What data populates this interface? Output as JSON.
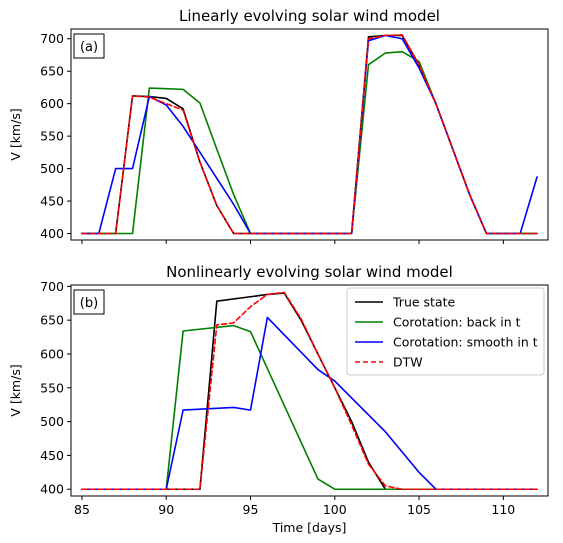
{
  "chart_data": [
    {
      "type": "line",
      "title": "Linearly evolving solar wind model",
      "panel_label": "(a)",
      "xlabel": "",
      "ylabel": "V [km/s]",
      "xlim": [
        84.35,
        112.65
      ],
      "ylim": [
        390,
        715
      ],
      "xticks": [
        85,
        90,
        95,
        100,
        105,
        110
      ],
      "yticks": [
        400,
        450,
        500,
        550,
        600,
        650,
        700
      ],
      "series": [
        {
          "key": "true",
          "color": "#000000",
          "dash": "",
          "x": [
            85,
            86,
            87,
            88,
            89,
            90,
            91,
            92,
            93,
            94,
            95,
            96,
            97,
            98,
            99,
            100,
            101,
            102,
            103,
            104,
            105,
            106,
            107,
            108,
            109,
            110,
            111,
            112
          ],
          "y": [
            400,
            400,
            400,
            612,
            611,
            608,
            592,
            510,
            443,
            400,
            400,
            400,
            400,
            400,
            400,
            400,
            400,
            703,
            705,
            705,
            660,
            600,
            530,
            460,
            400,
            400,
            400,
            400
          ]
        },
        {
          "key": "back",
          "color": "#008000",
          "dash": "",
          "x": [
            85,
            86,
            87,
            88,
            89,
            90,
            91,
            92,
            93,
            94,
            95,
            96,
            97,
            98,
            99,
            100,
            101,
            102,
            103,
            104,
            105,
            106,
            107,
            108,
            109,
            110,
            111,
            112
          ],
          "y": [
            400,
            400,
            400,
            400,
            624,
            623,
            622,
            601,
            530,
            460,
            400,
            400,
            400,
            400,
            400,
            400,
            400,
            660,
            678,
            680,
            665,
            600,
            530,
            460,
            400,
            400,
            400,
            400
          ]
        },
        {
          "key": "smooth",
          "color": "#0000ff",
          "dash": "",
          "x": [
            85,
            86,
            87,
            88,
            89,
            90,
            91,
            92,
            93,
            94,
            95,
            96,
            97,
            98,
            99,
            100,
            101,
            102,
            103,
            104,
            105,
            106,
            107,
            108,
            109,
            110,
            111,
            112
          ],
          "y": [
            400,
            400,
            500,
            500,
            611,
            598,
            565,
            525,
            485,
            445,
            400,
            400,
            400,
            400,
            400,
            400,
            400,
            697,
            705,
            700,
            655,
            600,
            530,
            460,
            400,
            400,
            400,
            487
          ]
        },
        {
          "key": "dtw",
          "color": "#ff0000",
          "dash": "5,3",
          "x": [
            85,
            86,
            87,
            88,
            89,
            90,
            91,
            92,
            93,
            94,
            95,
            96,
            97,
            98,
            99,
            100,
            101,
            102,
            103,
            104,
            105,
            106,
            107,
            108,
            109,
            110,
            111,
            112
          ],
          "y": [
            400,
            400,
            400,
            612,
            610,
            600,
            590,
            510,
            443,
            400,
            400,
            400,
            400,
            400,
            400,
            400,
            400,
            700,
            705,
            706,
            660,
            600,
            530,
            460,
            400,
            400,
            400,
            400
          ]
        }
      ]
    },
    {
      "type": "line",
      "title": "Nonlinearly evolving solar wind model",
      "panel_label": "(b)",
      "xlabel": "Time [days]",
      "ylabel": "V [km/s]",
      "xlim": [
        84.35,
        112.65
      ],
      "ylim": [
        390,
        702
      ],
      "xticks": [
        85,
        90,
        95,
        100,
        105,
        110
      ],
      "yticks": [
        400,
        450,
        500,
        550,
        600,
        650,
        700
      ],
      "legend_position": "top-right",
      "legend": [
        {
          "key": "true",
          "label": "True state"
        },
        {
          "key": "back",
          "label": "Corotation: back in t"
        },
        {
          "key": "smooth",
          "label": "Corotation: smooth in t"
        },
        {
          "key": "dtw",
          "label": "DTW"
        }
      ],
      "series": [
        {
          "key": "true",
          "name": "True state",
          "color": "#000000",
          "dash": "",
          "x": [
            85,
            92,
            93,
            96,
            97,
            98,
            99,
            100,
            101,
            102,
            103,
            104,
            105,
            112
          ],
          "y": [
            400,
            400,
            678,
            688,
            690,
            650,
            600,
            550,
            500,
            440,
            400,
            400,
            400,
            400
          ]
        },
        {
          "key": "back",
          "name": "Corotation: back in t",
          "color": "#008000",
          "dash": "",
          "x": [
            85,
            90,
            91,
            94,
            95,
            99,
            100,
            112
          ],
          "y": [
            400,
            400,
            634,
            642,
            633,
            415,
            400,
            400
          ]
        },
        {
          "key": "smooth",
          "name": "Corotation: smooth in t",
          "color": "#0000ff",
          "dash": "",
          "x": [
            85,
            90,
            91,
            94,
            95,
            96,
            99,
            100,
            103,
            105,
            106,
            112
          ],
          "y": [
            400,
            400,
            517,
            521,
            517,
            654,
            577,
            560,
            485,
            425,
            400,
            400
          ]
        },
        {
          "key": "dtw",
          "name": "DTW",
          "color": "#ff0000",
          "dash": "5,3",
          "x": [
            85,
            92,
            93,
            94,
            95,
            96,
            97,
            98,
            99,
            100,
            101,
            102,
            103,
            104,
            105,
            106,
            112
          ],
          "y": [
            400,
            400,
            643,
            646,
            670,
            688,
            691,
            652,
            600,
            550,
            495,
            437,
            405,
            400,
            400,
            400,
            400
          ]
        }
      ]
    }
  ]
}
